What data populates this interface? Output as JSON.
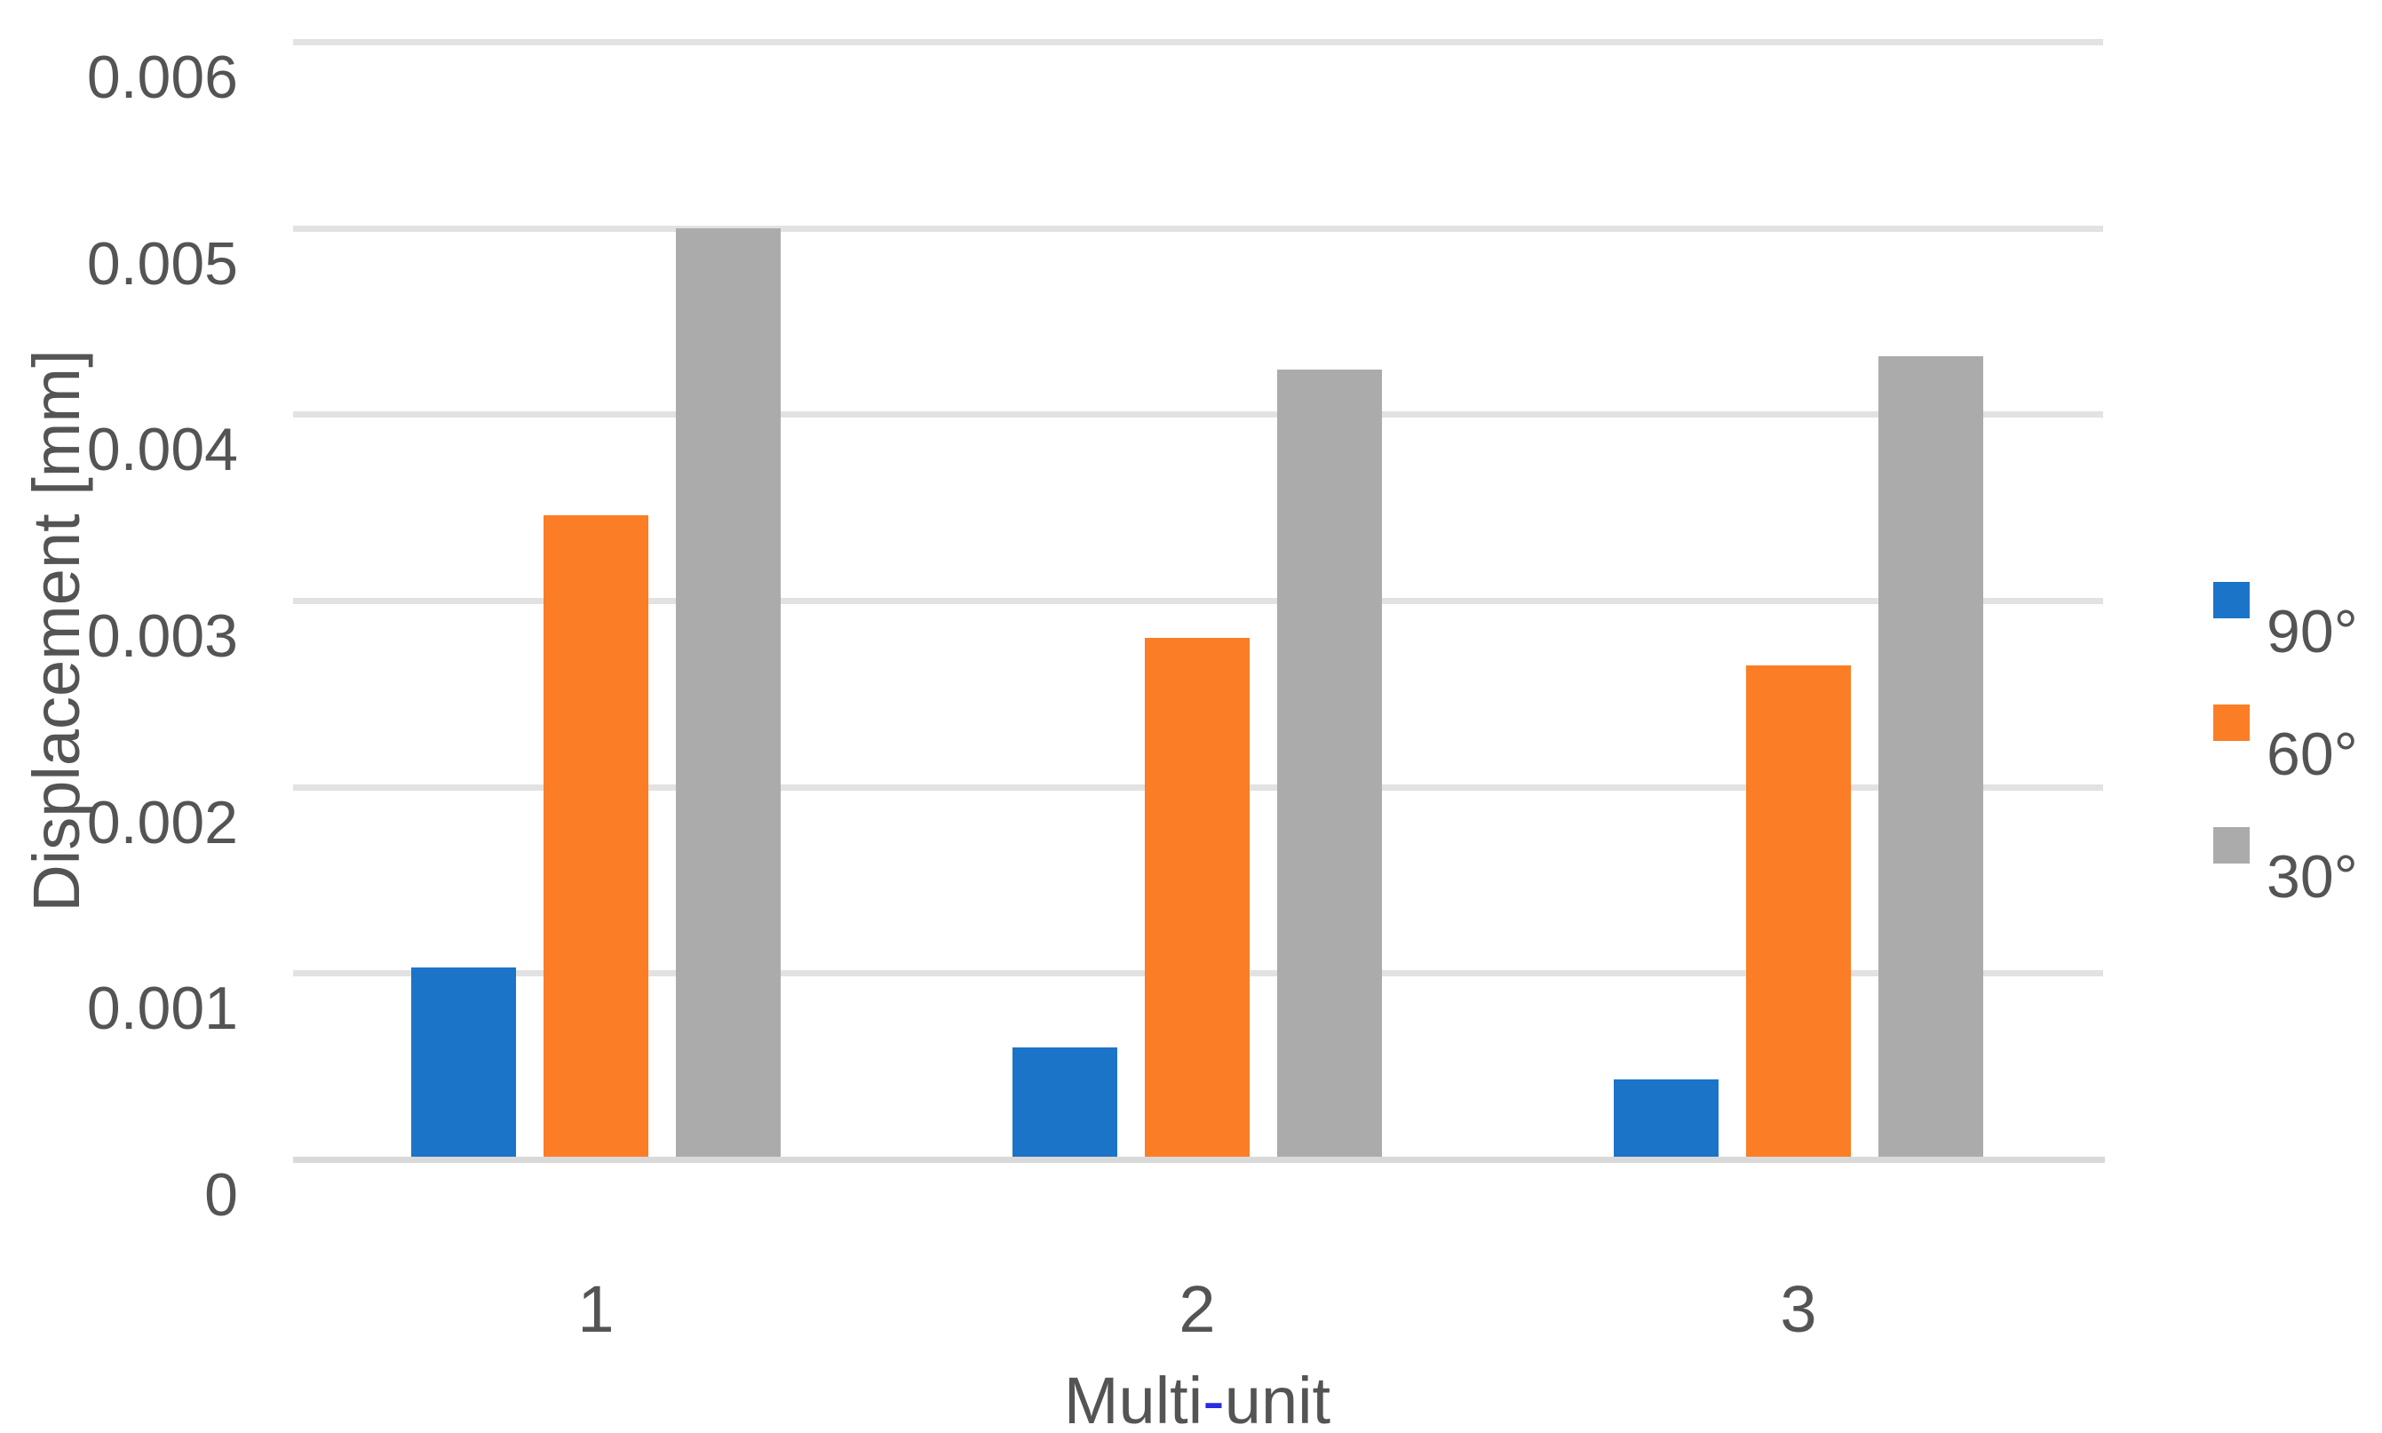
{
  "chart_data": {
    "type": "bar",
    "title": "",
    "categories": [
      "1",
      "2",
      "3"
    ],
    "series": [
      {
        "name": "90°",
        "color": "#1b74c8",
        "values": [
          0.00103,
          0.0006,
          0.00043
        ]
      },
      {
        "name": "60°",
        "color": "#fb7d26",
        "values": [
          0.00346,
          0.0028,
          0.00265
        ]
      },
      {
        "name": "30°",
        "color": "#ababab",
        "values": [
          0.005,
          0.00424,
          0.00431
        ]
      }
    ],
    "xlabel": "Multi-unit",
    "xlabel_parts": {
      "prefix": "Multi",
      "hyphen": "-",
      "suffix": "unit"
    },
    "ylabel": "Displacement [mm]",
    "ylim": [
      0,
      0.006
    ],
    "ytick_step": 0.001,
    "yticks": [
      {
        "value": 0,
        "label": "0"
      },
      {
        "value": 0.001,
        "label": "0.001"
      },
      {
        "value": 0.002,
        "label": "0.002"
      },
      {
        "value": 0.003,
        "label": "0.003"
      },
      {
        "value": 0.004,
        "label": "0.004"
      },
      {
        "value": 0.005,
        "label": "0.005"
      },
      {
        "value": 0.006,
        "label": "0.006"
      }
    ],
    "grid": true,
    "legend_position": "right"
  },
  "style": {
    "background": "#ffffff",
    "gridline_color": "#e2e2e2",
    "axis_line_color": "#d9d9d9",
    "text_color": "#545454",
    "xlabel_hyphen_color": "#2b2be0"
  }
}
